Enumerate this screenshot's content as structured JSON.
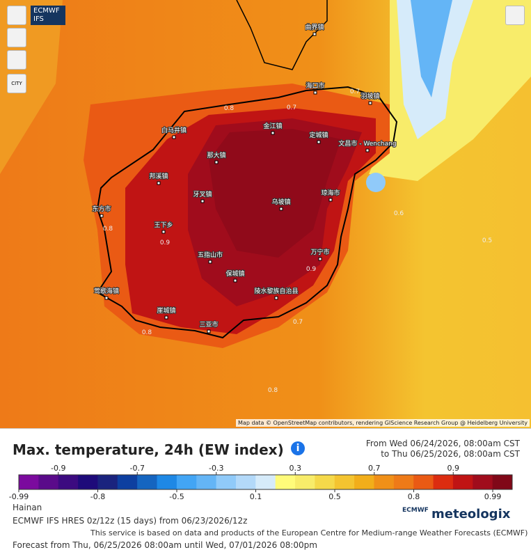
{
  "map": {
    "model": "ECMWF IFS",
    "city_button": "CITY",
    "attribution": "Map data © OpenStreetMap contributors, rendering GIScience Research Group @ Heidelberg University",
    "places": [
      "曲界镇",
      "海口市",
      "羽坡镇",
      "白马井镇",
      "金江镇",
      "定城镇",
      "文昌市 - Wenchang",
      "那大镇",
      "邦溪镇",
      "牙叉镇",
      "琼海市",
      "乌坡镇",
      "东方市",
      "王下乡",
      "万宁市",
      "五指山市",
      "保城镇",
      "莺歌海镇",
      "陵水黎族自治县",
      "崖城镇",
      "三亚市"
    ],
    "contours": [
      "0.8",
      "0.7",
      "0.7",
      "0.8",
      "0.9",
      "0.6",
      "0.5",
      "0.9",
      "0.7",
      "0.8",
      "0.8"
    ]
  },
  "legend": {
    "title": "Max. temperature, 24h (EW index)",
    "from": "From Wed 06/24/2026, 08:00am CST",
    "to": "to Thu 06/25/2026, 08:00am CST",
    "labels": [
      "-0.99",
      "-0.9",
      "-0.8",
      "-0.7",
      "-0.5",
      "-0.3",
      "0.1",
      "0.3",
      "0.5",
      "0.7",
      "0.8",
      "0.9",
      "0.99"
    ],
    "colors": [
      "#7b0a9e",
      "#5a0a8a",
      "#3c0a80",
      "#1e0a7a",
      "#1a237e",
      "#0d3fa0",
      "#1565c0",
      "#1e88e5",
      "#42a5f5",
      "#64b5f6",
      "#90caf9",
      "#b3d9f9",
      "#d6ebfa",
      "#fffb7a",
      "#f8ec6a",
      "#f5d94a",
      "#f4c430",
      "#f2ae1a",
      "#f09018",
      "#ee7a18",
      "#ea5a14",
      "#dc2c10",
      "#c01414",
      "#a00c1c",
      "#800818"
    ]
  },
  "footer": {
    "region": "Hainan",
    "model": "ECMWF IFS HRES 0z/12z (15 days) from 06/23/2026/12z",
    "credit": "This service is based on data and products of the European Centre for Medium-range Weather Forecasts (ECMWF)",
    "forecast": "Forecast from Thu, 06/25/2026 08:00am until Wed, 07/01/2026 08:00pm",
    "brand": "meteologix",
    "ecmwf": "ECMWF"
  }
}
